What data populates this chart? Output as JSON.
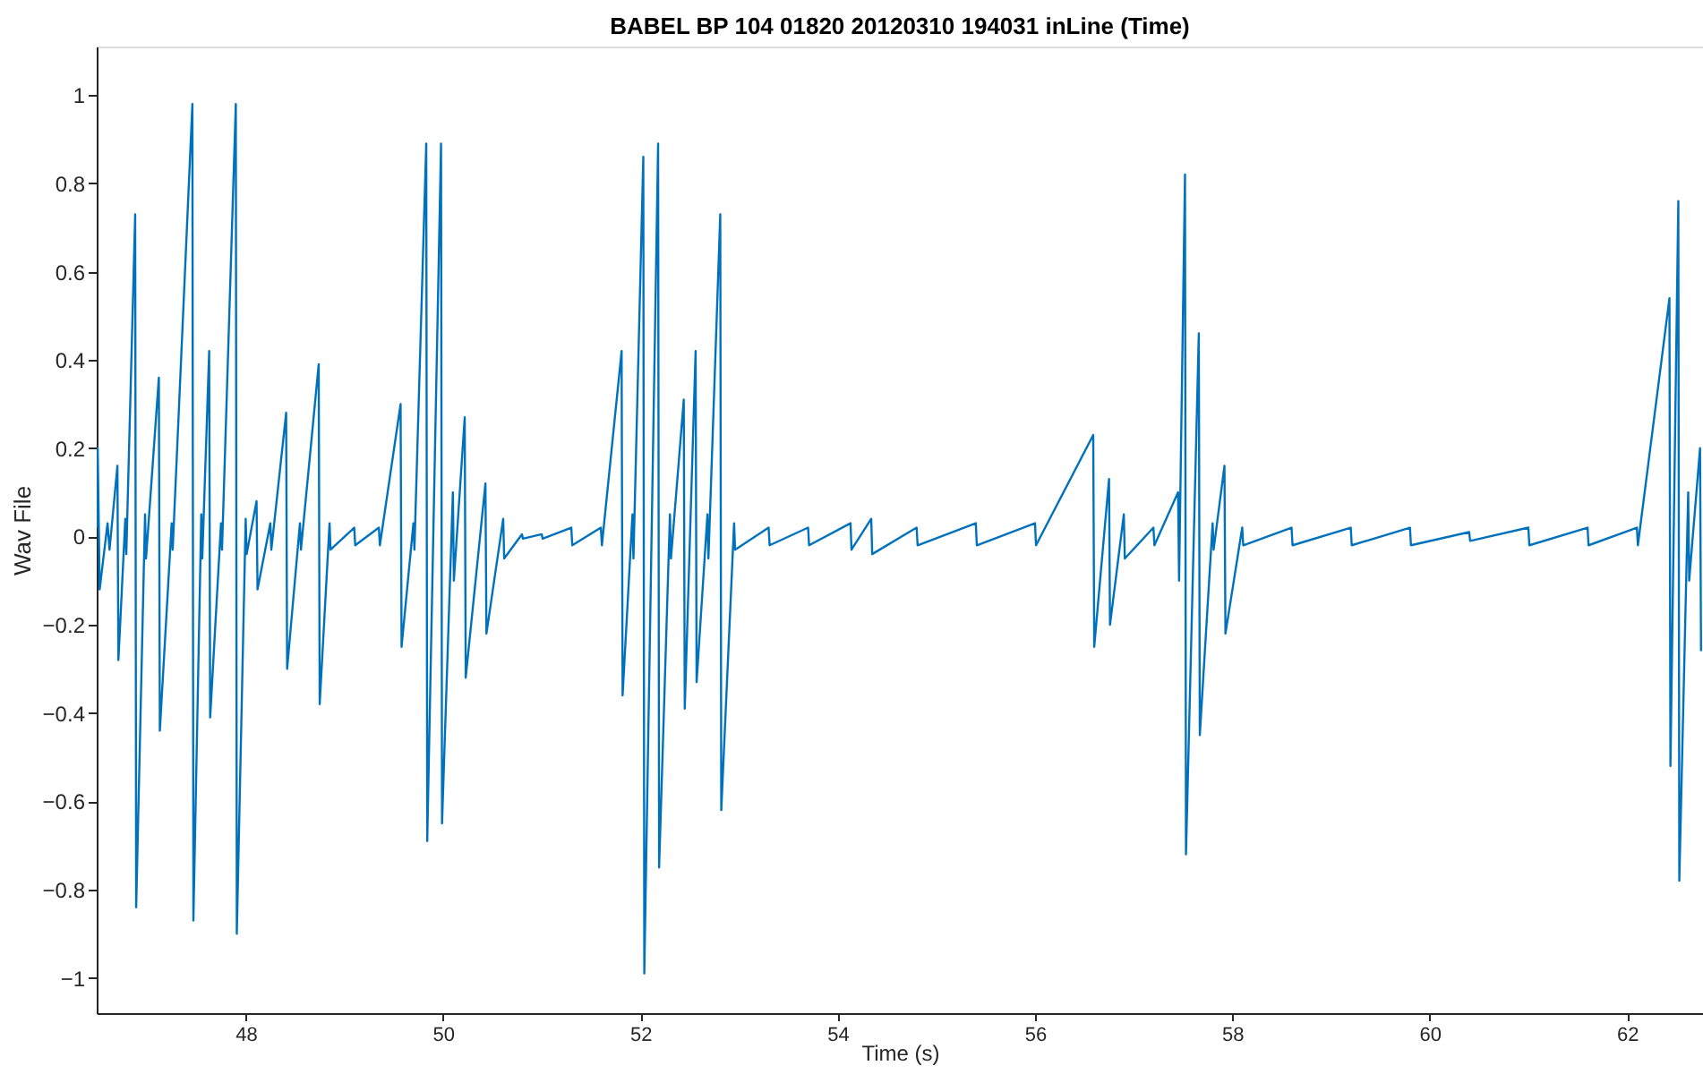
{
  "chart_data": {
    "type": "line",
    "title": "BABEL BP 104 01820 20120310 194031 inLine (Time)",
    "xlabel": "Time (s)",
    "ylabel": "Wav File",
    "x": [
      46.49,
      46.5,
      46.52,
      46.6,
      46.62,
      46.7,
      46.71,
      46.78,
      46.79,
      46.88,
      46.89,
      46.98,
      46.99,
      47.12,
      47.13,
      47.25,
      47.26,
      47.46,
      47.47,
      47.55,
      47.56,
      47.63,
      47.64,
      47.75,
      47.76,
      47.9,
      47.91,
      48.0,
      48.01,
      48.11,
      48.12,
      48.25,
      48.26,
      48.41,
      48.42,
      48.55,
      48.56,
      48.74,
      48.75,
      48.85,
      48.86,
      49.1,
      49.11,
      49.35,
      49.36,
      49.57,
      49.58,
      49.7,
      49.71,
      49.83,
      49.84,
      49.98,
      49.99,
      50.1,
      50.11,
      50.22,
      50.23,
      50.43,
      50.44,
      50.61,
      50.62,
      50.8,
      50.81,
      51.0,
      51.01,
      51.3,
      51.31,
      51.6,
      51.61,
      51.81,
      51.82,
      51.92,
      51.93,
      52.03,
      52.04,
      52.18,
      52.19,
      52.3,
      52.31,
      52.44,
      52.45,
      52.56,
      52.57,
      52.68,
      52.69,
      52.81,
      52.82,
      52.95,
      52.96,
      53.3,
      53.31,
      53.7,
      53.71,
      54.13,
      54.14,
      54.34,
      54.35,
      54.8,
      54.81,
      55.4,
      55.41,
      56.0,
      56.01,
      56.59,
      56.6,
      56.75,
      56.76,
      56.9,
      56.91,
      57.2,
      57.21,
      57.45,
      57.46,
      57.52,
      57.53,
      57.66,
      57.67,
      57.8,
      57.81,
      57.92,
      57.93,
      58.1,
      58.11,
      58.6,
      58.61,
      59.2,
      59.21,
      59.8,
      59.81,
      60.4,
      60.41,
      61.0,
      61.01,
      61.6,
      61.61,
      62.1,
      62.11,
      62.43,
      62.44,
      62.52,
      62.53,
      62.62,
      62.63,
      62.74,
      62.75
    ],
    "series": [
      {
        "color": "#0072bd",
        "values": [
          0.02,
          0.2,
          -0.12,
          0.03,
          -0.03,
          0.16,
          -0.28,
          0.04,
          -0.04,
          0.73,
          -0.84,
          0.05,
          -0.05,
          0.36,
          -0.44,
          0.03,
          -0.03,
          0.98,
          -0.87,
          0.05,
          -0.05,
          0.42,
          -0.41,
          0.03,
          -0.03,
          0.98,
          -0.9,
          0.04,
          -0.04,
          0.08,
          -0.12,
          0.03,
          -0.03,
          0.28,
          -0.3,
          0.03,
          -0.03,
          0.39,
          -0.38,
          0.03,
          -0.03,
          0.02,
          -0.02,
          0.02,
          -0.02,
          0.3,
          -0.25,
          0.03,
          -0.03,
          0.89,
          -0.69,
          0.89,
          -0.65,
          0.1,
          -0.1,
          0.27,
          -0.32,
          0.12,
          -0.22,
          0.04,
          -0.05,
          0.005,
          -0.005,
          0.005,
          -0.005,
          0.02,
          -0.02,
          0.02,
          -0.02,
          0.42,
          -0.36,
          0.05,
          -0.05,
          0.86,
          -0.99,
          0.89,
          -0.75,
          0.05,
          -0.05,
          0.31,
          -0.39,
          0.42,
          -0.33,
          0.05,
          -0.05,
          0.73,
          -0.62,
          0.03,
          -0.03,
          0.02,
          -0.02,
          0.02,
          -0.02,
          0.03,
          -0.03,
          0.04,
          -0.04,
          0.02,
          -0.02,
          0.03,
          -0.02,
          0.03,
          -0.02,
          0.23,
          -0.25,
          0.13,
          -0.2,
          0.05,
          -0.05,
          0.02,
          -0.02,
          0.1,
          -0.1,
          0.82,
          -0.72,
          0.46,
          -0.45,
          0.03,
          -0.03,
          0.16,
          -0.22,
          0.02,
          -0.02,
          0.02,
          -0.02,
          0.02,
          -0.02,
          0.02,
          -0.02,
          0.01,
          -0.01,
          0.02,
          -0.02,
          0.02,
          -0.02,
          0.02,
          -0.02,
          0.54,
          -0.52,
          0.76,
          -0.78,
          0.1,
          -0.1,
          0.2,
          -0.26
        ]
      }
    ],
    "xlim": [
      46.49,
      62.77
    ],
    "ylim": [
      -1.08,
      1.11
    ],
    "xticks": [
      48,
      50,
      52,
      54,
      56,
      58,
      60,
      62
    ],
    "yticks": [
      -1,
      -0.8,
      -0.6,
      -0.4,
      -0.2,
      0,
      0.2,
      0.4,
      0.6,
      0.8,
      1
    ],
    "grid": false
  }
}
